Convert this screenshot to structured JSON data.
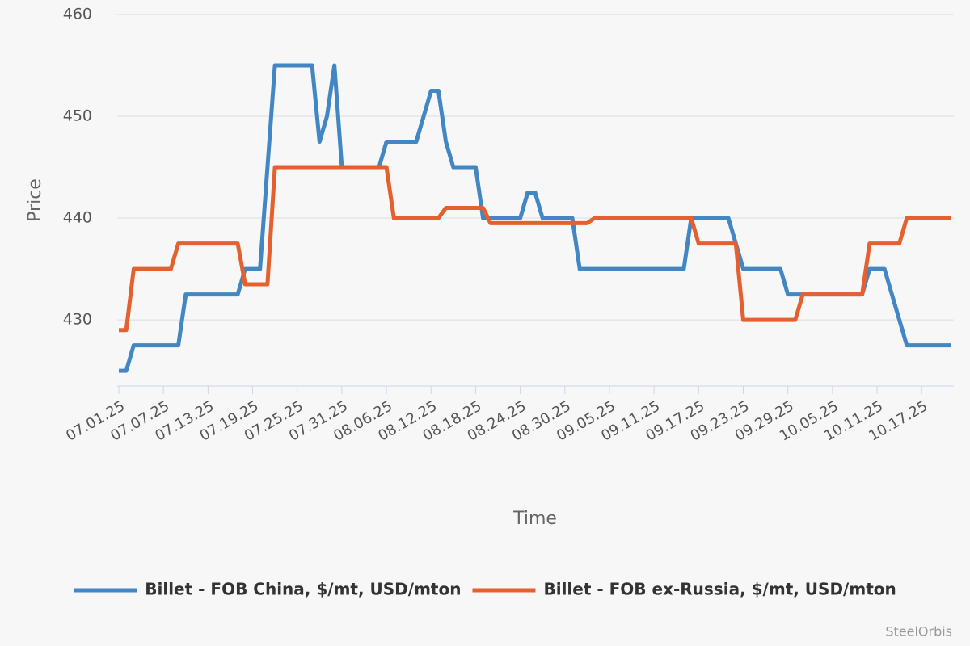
{
  "chart_data": {
    "type": "line",
    "y_label": "Price",
    "x_label": "Time",
    "credit": "SteelOrbis",
    "xlim": [
      "07.01.25",
      "10.21.25"
    ],
    "xticks": [
      "07.01.25",
      "07.07.25",
      "07.13.25",
      "07.19.25",
      "07.25.25",
      "07.31.25",
      "08.06.25",
      "08.12.25",
      "08.18.25",
      "08.24.25",
      "08.30.25",
      "09.05.25",
      "09.11.25",
      "09.17.25",
      "09.23.25",
      "09.29.25",
      "10.05.25",
      "10.11.25",
      "10.17.25"
    ],
    "ylim": [
      423.5,
      460
    ],
    "yticks": [
      430,
      440,
      450,
      460
    ],
    "grid": true,
    "legend": "bottom",
    "series": [
      {
        "name": "Billet - FOB China, $/mt, USD/mton",
        "color": "#4286c4",
        "x": [
          "07.01.25",
          "07.02.25",
          "07.03.25",
          "07.09.25",
          "07.10.25",
          "07.17.25",
          "07.18.25",
          "07.20.25",
          "07.22.25",
          "07.27.25",
          "07.28.25",
          "07.29.25",
          "07.30.25",
          "07.31.25",
          "08.05.25",
          "08.06.25",
          "08.10.25",
          "08.12.25",
          "08.13.25",
          "08.14.25",
          "08.15.25",
          "08.18.25",
          "08.19.25",
          "08.24.25",
          "08.25.25",
          "08.26.25",
          "08.27.25",
          "08.31.25",
          "09.01.25",
          "09.15.25",
          "09.16.25",
          "09.21.25",
          "09.23.25",
          "09.28.25",
          "09.29.25",
          "10.09.25",
          "10.10.25",
          "10.12.25",
          "10.15.25",
          "10.21.25"
        ],
        "values": [
          425,
          425,
          427.5,
          427.5,
          432.5,
          432.5,
          435,
          435,
          455,
          455,
          447.5,
          450,
          455,
          445,
          445,
          447.5,
          447.5,
          452.5,
          452.5,
          447.5,
          445,
          445,
          440,
          440,
          442.5,
          442.5,
          440,
          440,
          435,
          435,
          440,
          440,
          435,
          435,
          432.5,
          432.5,
          435,
          435,
          427.5,
          427.5
        ]
      },
      {
        "name": "Billet - FOB ex-Russia, $/mt, USD/mton",
        "color": "#e4612f",
        "x": [
          "07.01.25",
          "07.02.25",
          "07.03.25",
          "07.08.25",
          "07.09.25",
          "07.17.25",
          "07.18.25",
          "07.21.25",
          "07.22.25",
          "08.06.25",
          "08.07.25",
          "08.13.25",
          "08.14.25",
          "08.19.25",
          "08.20.25",
          "09.02.25",
          "09.03.25",
          "09.16.25",
          "09.17.25",
          "09.22.25",
          "09.23.25",
          "09.30.25",
          "10.01.25",
          "10.09.25",
          "10.10.25",
          "10.14.25",
          "10.15.25",
          "10.21.25"
        ],
        "values": [
          429,
          429,
          435,
          435,
          437.5,
          437.5,
          433.5,
          433.5,
          445,
          445,
          440,
          440,
          441,
          441,
          439.5,
          439.5,
          440,
          440,
          437.5,
          437.5,
          430,
          430,
          432.5,
          432.5,
          437.5,
          437.5,
          440,
          440
        ]
      }
    ]
  }
}
